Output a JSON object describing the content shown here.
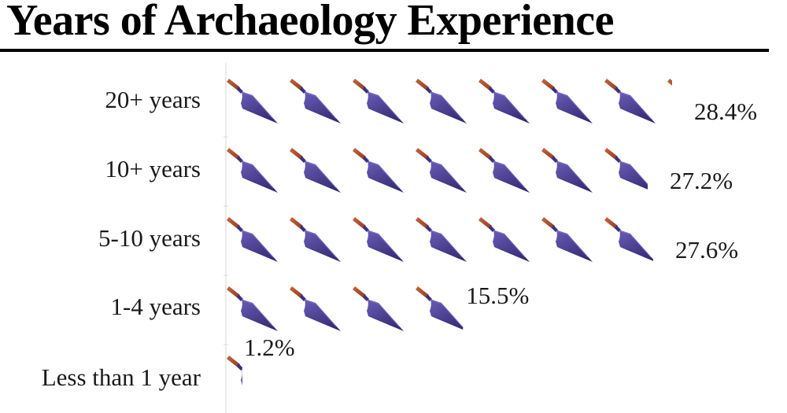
{
  "header": {
    "title": "Years of Archaeology Experience"
  },
  "chart_data": {
    "type": "bar",
    "style": "pictograph",
    "icon": "trowel-icon",
    "title": "Years of Archaeology Experience",
    "xlabel": "",
    "ylabel": "",
    "unit": "%",
    "categories": [
      "20+ years",
      "10+ years",
      "5-10 years",
      "1-4 years",
      "Less than 1 year"
    ],
    "values": [
      28.4,
      27.2,
      27.6,
      15.5,
      1.2
    ],
    "value_labels": [
      "28.4%",
      "27.2%",
      "27.6%",
      "15.5%",
      "1.2%"
    ],
    "percent_per_icon": 4.0,
    "grid": false,
    "legend": "none",
    "colors": {
      "blade": "#4b3d96",
      "blade_dark": "#352b73",
      "blade_light": "#6a5cb8",
      "handle": "#c8643a",
      "handle_dark": "#8e3d1f",
      "separator": "#e3e3e3"
    }
  }
}
